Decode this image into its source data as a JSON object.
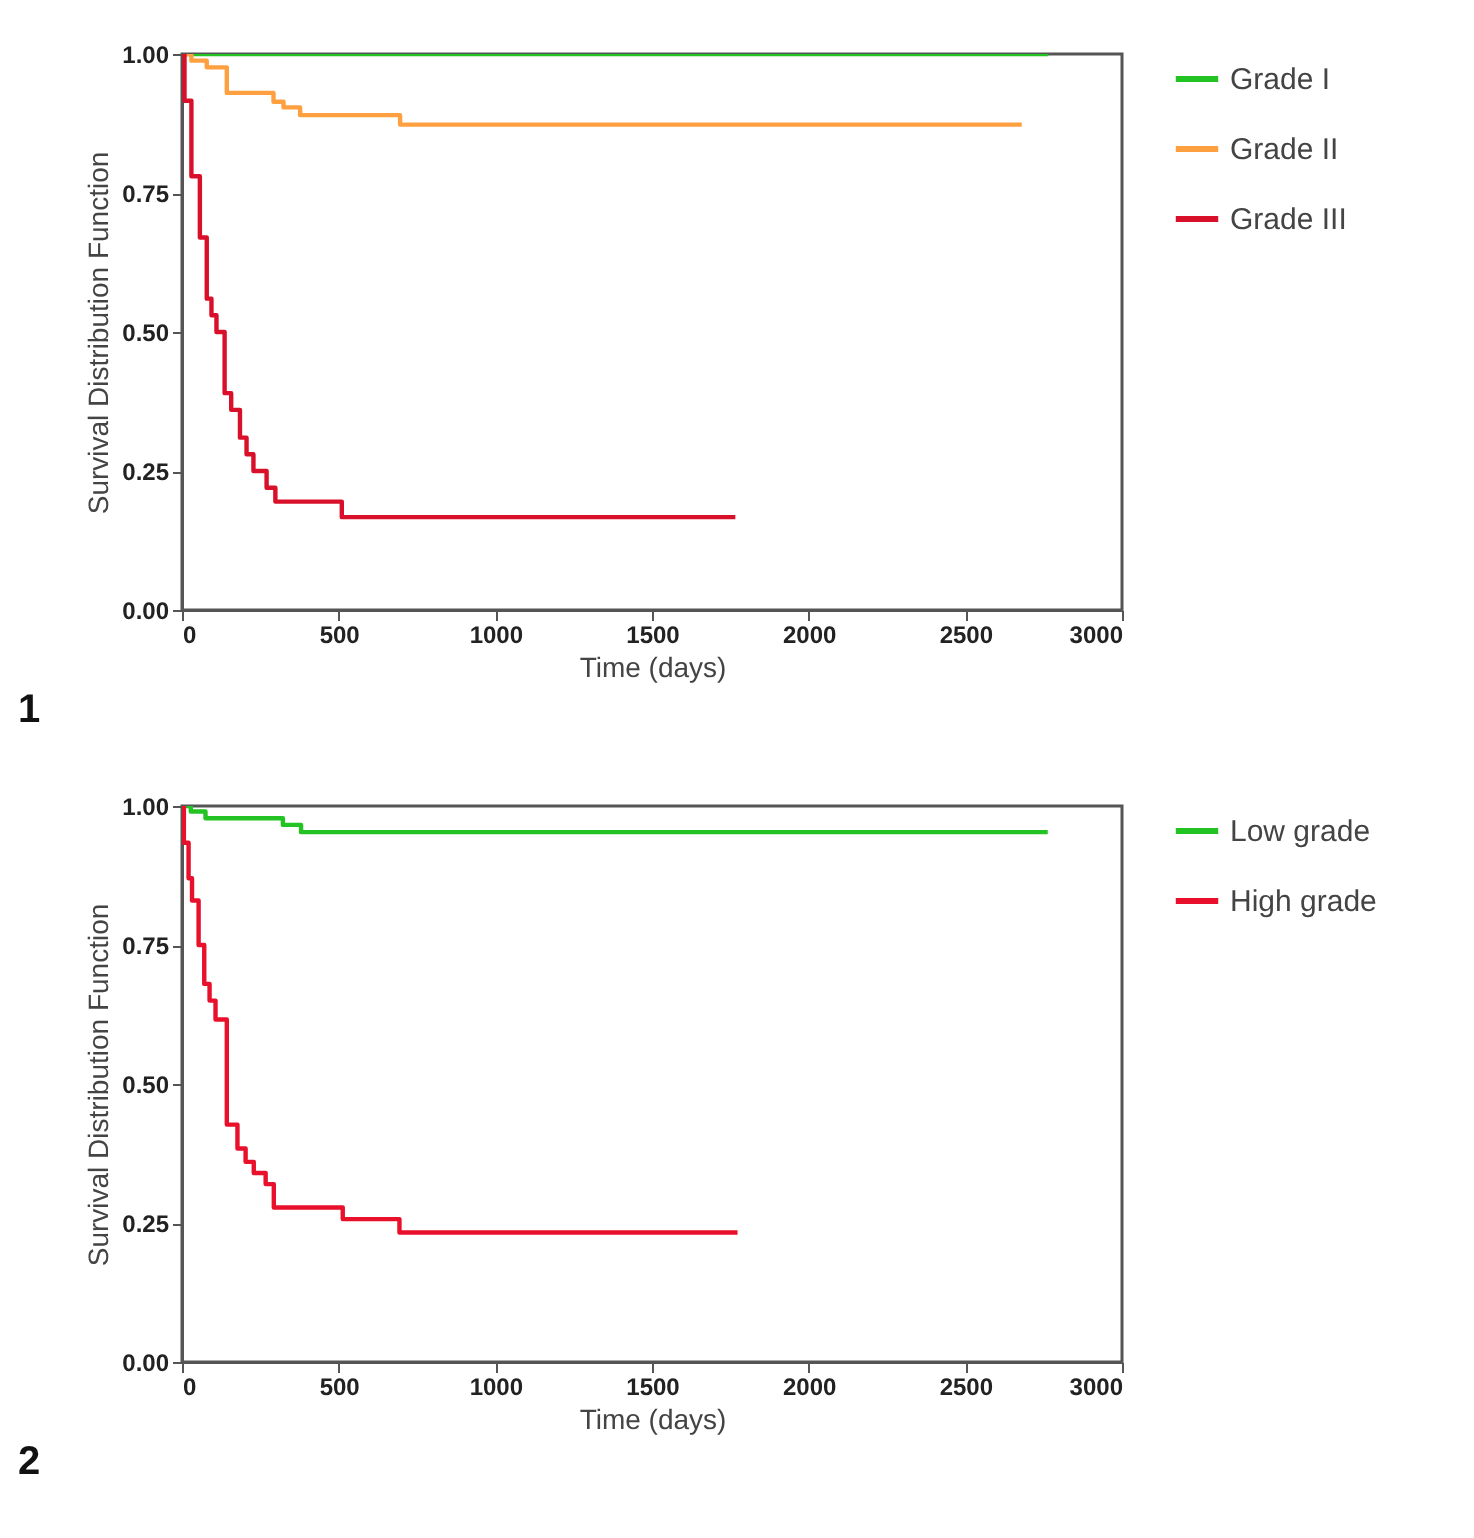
{
  "chart_data": [
    {
      "type": "step",
      "xlabel": "Time (days)",
      "ylabel": "Survival Distribution Function",
      "annotations": [
        "1"
      ],
      "xlim": [
        0,
        3000
      ],
      "xticks": [
        0,
        500,
        1000,
        1500,
        2000,
        2500,
        3000
      ],
      "ylim": [
        0,
        1
      ],
      "yticks": [
        {
          "value": 0,
          "label": "0.00"
        },
        {
          "value": 0.25,
          "label": "0.25"
        },
        {
          "value": 0.5,
          "label": "0.50"
        },
        {
          "value": 0.75,
          "label": "0.75"
        },
        {
          "value": 1,
          "label": "1.00"
        }
      ],
      "grid": false,
      "legend": "top right",
      "series": [
        {
          "name": "Grade I",
          "color": "#22c322",
          "x": [
            0,
            2765
          ],
          "values": [
            1.0,
            1.0
          ]
        },
        {
          "name": "Grade II",
          "color": "#ffa040",
          "x": [
            0,
            30,
            79,
            143,
            292,
            324,
            377,
            696,
            2680
          ],
          "values": [
            1.0,
            0.988,
            0.976,
            0.93,
            0.914,
            0.904,
            0.89,
            0.873,
            0.873
          ]
        },
        {
          "name": "Grade III",
          "color": "#d9102a",
          "x": [
            0,
            8,
            30,
            57,
            79,
            94,
            110,
            136,
            157,
            185,
            206,
            228,
            270,
            298,
            510,
            1766
          ],
          "values": [
            1.0,
            0.916,
            0.78,
            0.67,
            0.56,
            0.53,
            0.5,
            0.39,
            0.36,
            0.31,
            0.28,
            0.25,
            0.22,
            0.195,
            0.167,
            0.167
          ]
        }
      ]
    },
    {
      "type": "step",
      "xlabel": "Time (days)",
      "ylabel": "Survival Distribution Function",
      "annotations": [
        "2"
      ],
      "xlim": [
        0,
        3000
      ],
      "xticks": [
        0,
        500,
        1000,
        1500,
        2000,
        2500,
        3000
      ],
      "ylim": [
        0,
        1
      ],
      "yticks": [
        {
          "value": 0,
          "label": "0.00"
        },
        {
          "value": 0.25,
          "label": "0.25"
        },
        {
          "value": 0.5,
          "label": "0.50"
        },
        {
          "value": 0.75,
          "label": "0.75"
        },
        {
          "value": 1,
          "label": "1.00"
        }
      ],
      "grid": false,
      "legend": "top right",
      "series": [
        {
          "name": "Low grade",
          "color": "#22c322",
          "x": [
            0,
            28,
            75,
            322,
            380,
            2763
          ],
          "values": [
            1.0,
            0.99,
            0.978,
            0.966,
            0.953,
            0.953
          ]
        },
        {
          "name": "High grade",
          "color": "#e8102a",
          "x": [
            0,
            6,
            21,
            32,
            53,
            71,
            88,
            107,
            143,
            177,
            203,
            229,
            267,
            293,
            513,
            694,
            1773
          ],
          "values": [
            1.0,
            0.934,
            0.87,
            0.83,
            0.75,
            0.68,
            0.65,
            0.616,
            0.427,
            0.384,
            0.36,
            0.34,
            0.32,
            0.278,
            0.257,
            0.233,
            0.233
          ]
        }
      ]
    }
  ]
}
